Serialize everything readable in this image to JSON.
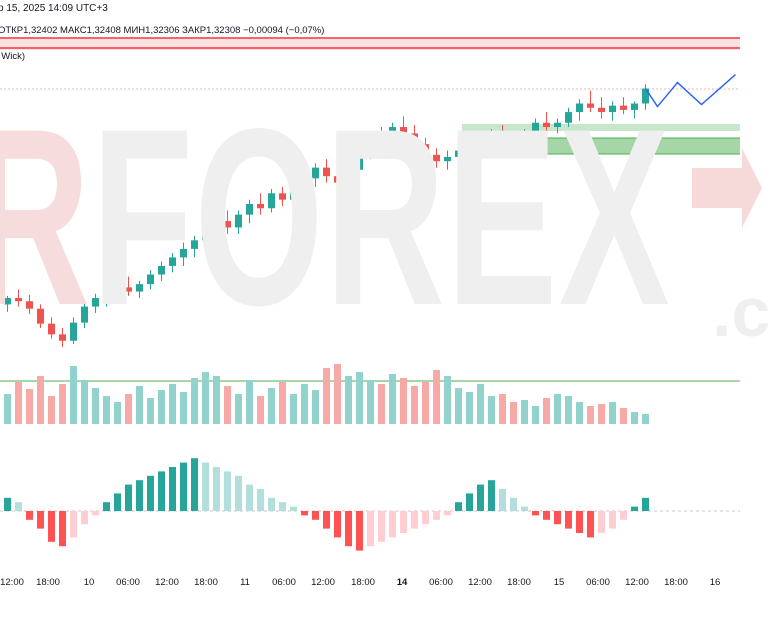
{
  "header": {
    "title": "р 15, 2025 14:09 UTC+3",
    "ohlc_line": "ОТКР1,32402  МАКС1,32408  МИН1,32306  ЗАКР1,32308",
    "change": "−0,00094 (−0,07%)",
    "sub_label": ", Wick)"
  },
  "watermark": {
    "text_red": "R",
    "text_gray": "FOREX",
    "suffix": ".c"
  },
  "x_axis": {
    "ticks": [
      {
        "label": "12:00",
        "bold": false
      },
      {
        "label": "18:00",
        "bold": false
      },
      {
        "label": "10",
        "bold": false
      },
      {
        "label": "06:00",
        "bold": false
      },
      {
        "label": "12:00",
        "bold": false
      },
      {
        "label": "18:00",
        "bold": false
      },
      {
        "label": "11",
        "bold": false
      },
      {
        "label": "06:00",
        "bold": false
      },
      {
        "label": "12:00",
        "bold": false
      },
      {
        "label": "18:00",
        "bold": false
      },
      {
        "label": "14",
        "bold": true
      },
      {
        "label": "06:00",
        "bold": false
      },
      {
        "label": "12:00",
        "bold": false
      },
      {
        "label": "18:00",
        "bold": false
      },
      {
        "label": "15",
        "bold": false
      },
      {
        "label": "06:00",
        "bold": false
      },
      {
        "label": "12:00",
        "bold": false
      },
      {
        "label": "18:00",
        "bold": false
      },
      {
        "label": "16",
        "bold": false
      }
    ]
  },
  "colors": {
    "up": "#26a69a",
    "down": "#ef5350",
    "vol_up": "#92d2cc",
    "vol_down": "#f7a9a7",
    "hist_up_strong": "#26a69a",
    "hist_up_weak": "#b2dfdb",
    "hist_down_strong": "#ff5252",
    "hist_down_weak": "#ffcdd2",
    "resistance": "#f23645",
    "support": "#4caf50",
    "forecast": "#2962ff"
  },
  "chart_data": {
    "type": "candlestick",
    "candles": [
      [
        1.3052,
        1.306,
        1.3045,
        1.3058
      ],
      [
        1.3058,
        1.3066,
        1.305,
        1.3055
      ],
      [
        1.3055,
        1.3061,
        1.3043,
        1.3048
      ],
      [
        1.3048,
        1.3052,
        1.303,
        1.3034
      ],
      [
        1.3034,
        1.304,
        1.302,
        1.3024
      ],
      [
        1.3024,
        1.303,
        1.3012,
        1.3018
      ],
      [
        1.3018,
        1.304,
        1.3015,
        1.3035
      ],
      [
        1.3035,
        1.3055,
        1.303,
        1.305
      ],
      [
        1.305,
        1.3062,
        1.3044,
        1.3058
      ],
      [
        1.3058,
        1.3066,
        1.305,
        1.3062
      ],
      [
        1.3062,
        1.3072,
        1.3056,
        1.3068
      ],
      [
        1.3068,
        1.3078,
        1.306,
        1.3064
      ],
      [
        1.3064,
        1.3074,
        1.3058,
        1.3071
      ],
      [
        1.3071,
        1.3084,
        1.3066,
        1.308
      ],
      [
        1.308,
        1.3092,
        1.3074,
        1.3088
      ],
      [
        1.3088,
        1.31,
        1.3082,
        1.3096
      ],
      [
        1.3096,
        1.311,
        1.3088,
        1.3104
      ],
      [
        1.3104,
        1.3116,
        1.3096,
        1.3112
      ],
      [
        1.3112,
        1.3128,
        1.3104,
        1.3122
      ],
      [
        1.3122,
        1.3136,
        1.3112,
        1.313
      ],
      [
        1.313,
        1.314,
        1.3118,
        1.3124
      ],
      [
        1.3124,
        1.314,
        1.3118,
        1.3136
      ],
      [
        1.3136,
        1.315,
        1.3128,
        1.3146
      ],
      [
        1.3146,
        1.3156,
        1.3136,
        1.3142
      ],
      [
        1.3142,
        1.316,
        1.3138,
        1.3156
      ],
      [
        1.3156,
        1.3162,
        1.3144,
        1.315
      ],
      [
        1.315,
        1.3164,
        1.3146,
        1.316
      ],
      [
        1.316,
        1.3176,
        1.3152,
        1.317
      ],
      [
        1.317,
        1.3184,
        1.3162,
        1.318
      ],
      [
        1.318,
        1.3188,
        1.3166,
        1.3172
      ],
      [
        1.3172,
        1.3182,
        1.316,
        1.3166
      ],
      [
        1.3166,
        1.3184,
        1.316,
        1.3178
      ],
      [
        1.3178,
        1.32,
        1.3172,
        1.3196
      ],
      [
        1.3196,
        1.3214,
        1.3188,
        1.3208
      ],
      [
        1.3208,
        1.3218,
        1.3196,
        1.3202
      ],
      [
        1.3202,
        1.3222,
        1.3198,
        1.3218
      ],
      [
        1.3218,
        1.3228,
        1.3206,
        1.3212
      ],
      [
        1.3212,
        1.322,
        1.3196,
        1.3202
      ],
      [
        1.3202,
        1.3208,
        1.3186,
        1.3192
      ],
      [
        1.3192,
        1.3198,
        1.318,
        1.3186
      ],
      [
        1.3186,
        1.3196,
        1.3178,
        1.319
      ],
      [
        1.319,
        1.3202,
        1.3184,
        1.3196
      ],
      [
        1.3196,
        1.3208,
        1.319,
        1.3204
      ],
      [
        1.3204,
        1.3214,
        1.3196,
        1.3208
      ],
      [
        1.3208,
        1.3216,
        1.32,
        1.3212
      ],
      [
        1.3212,
        1.322,
        1.3204,
        1.3208
      ],
      [
        1.3208,
        1.3214,
        1.32,
        1.3204
      ],
      [
        1.3204,
        1.3216,
        1.3198,
        1.3212
      ],
      [
        1.3212,
        1.3226,
        1.3206,
        1.3222
      ],
      [
        1.3222,
        1.3232,
        1.3214,
        1.3218
      ],
      [
        1.3218,
        1.3226,
        1.3212,
        1.3222
      ],
      [
        1.3222,
        1.3236,
        1.3218,
        1.3232
      ],
      [
        1.3232,
        1.3244,
        1.3224,
        1.324
      ],
      [
        1.324,
        1.3252,
        1.3232,
        1.3236
      ],
      [
        1.3236,
        1.3246,
        1.3226,
        1.3232
      ],
      [
        1.3232,
        1.3242,
        1.3224,
        1.3238
      ],
      [
        1.3238,
        1.3246,
        1.323,
        1.3234
      ],
      [
        1.3234,
        1.3242,
        1.3226,
        1.324
      ],
      [
        1.324,
        1.3258,
        1.3234,
        1.3254
      ]
    ],
    "volume": [
      30,
      42,
      35,
      48,
      28,
      40,
      58,
      44,
      36,
      28,
      22,
      30,
      38,
      26,
      34,
      40,
      32,
      46,
      52,
      48,
      38,
      30,
      44,
      28,
      36,
      42,
      30,
      40,
      34,
      56,
      60,
      48,
      52,
      44,
      40,
      50,
      46,
      38,
      42,
      54,
      48,
      36,
      32,
      40,
      28,
      30,
      22,
      24,
      18,
      26,
      30,
      28,
      22,
      18,
      20,
      22,
      16,
      12,
      10
    ],
    "histogram": [
      6,
      4,
      -4,
      -8,
      -14,
      -16,
      -12,
      -6,
      -2,
      4,
      8,
      12,
      14,
      16,
      18,
      20,
      22,
      24,
      22,
      20,
      18,
      16,
      12,
      10,
      6,
      4,
      2,
      -2,
      -4,
      -8,
      -12,
      -16,
      -18,
      -16,
      -14,
      -12,
      -10,
      -8,
      -6,
      -4,
      -2,
      4,
      8,
      12,
      14,
      10,
      6,
      2,
      -2,
      -4,
      -6,
      -8,
      -10,
      -12,
      -10,
      -8,
      -4,
      2,
      6
    ]
  }
}
